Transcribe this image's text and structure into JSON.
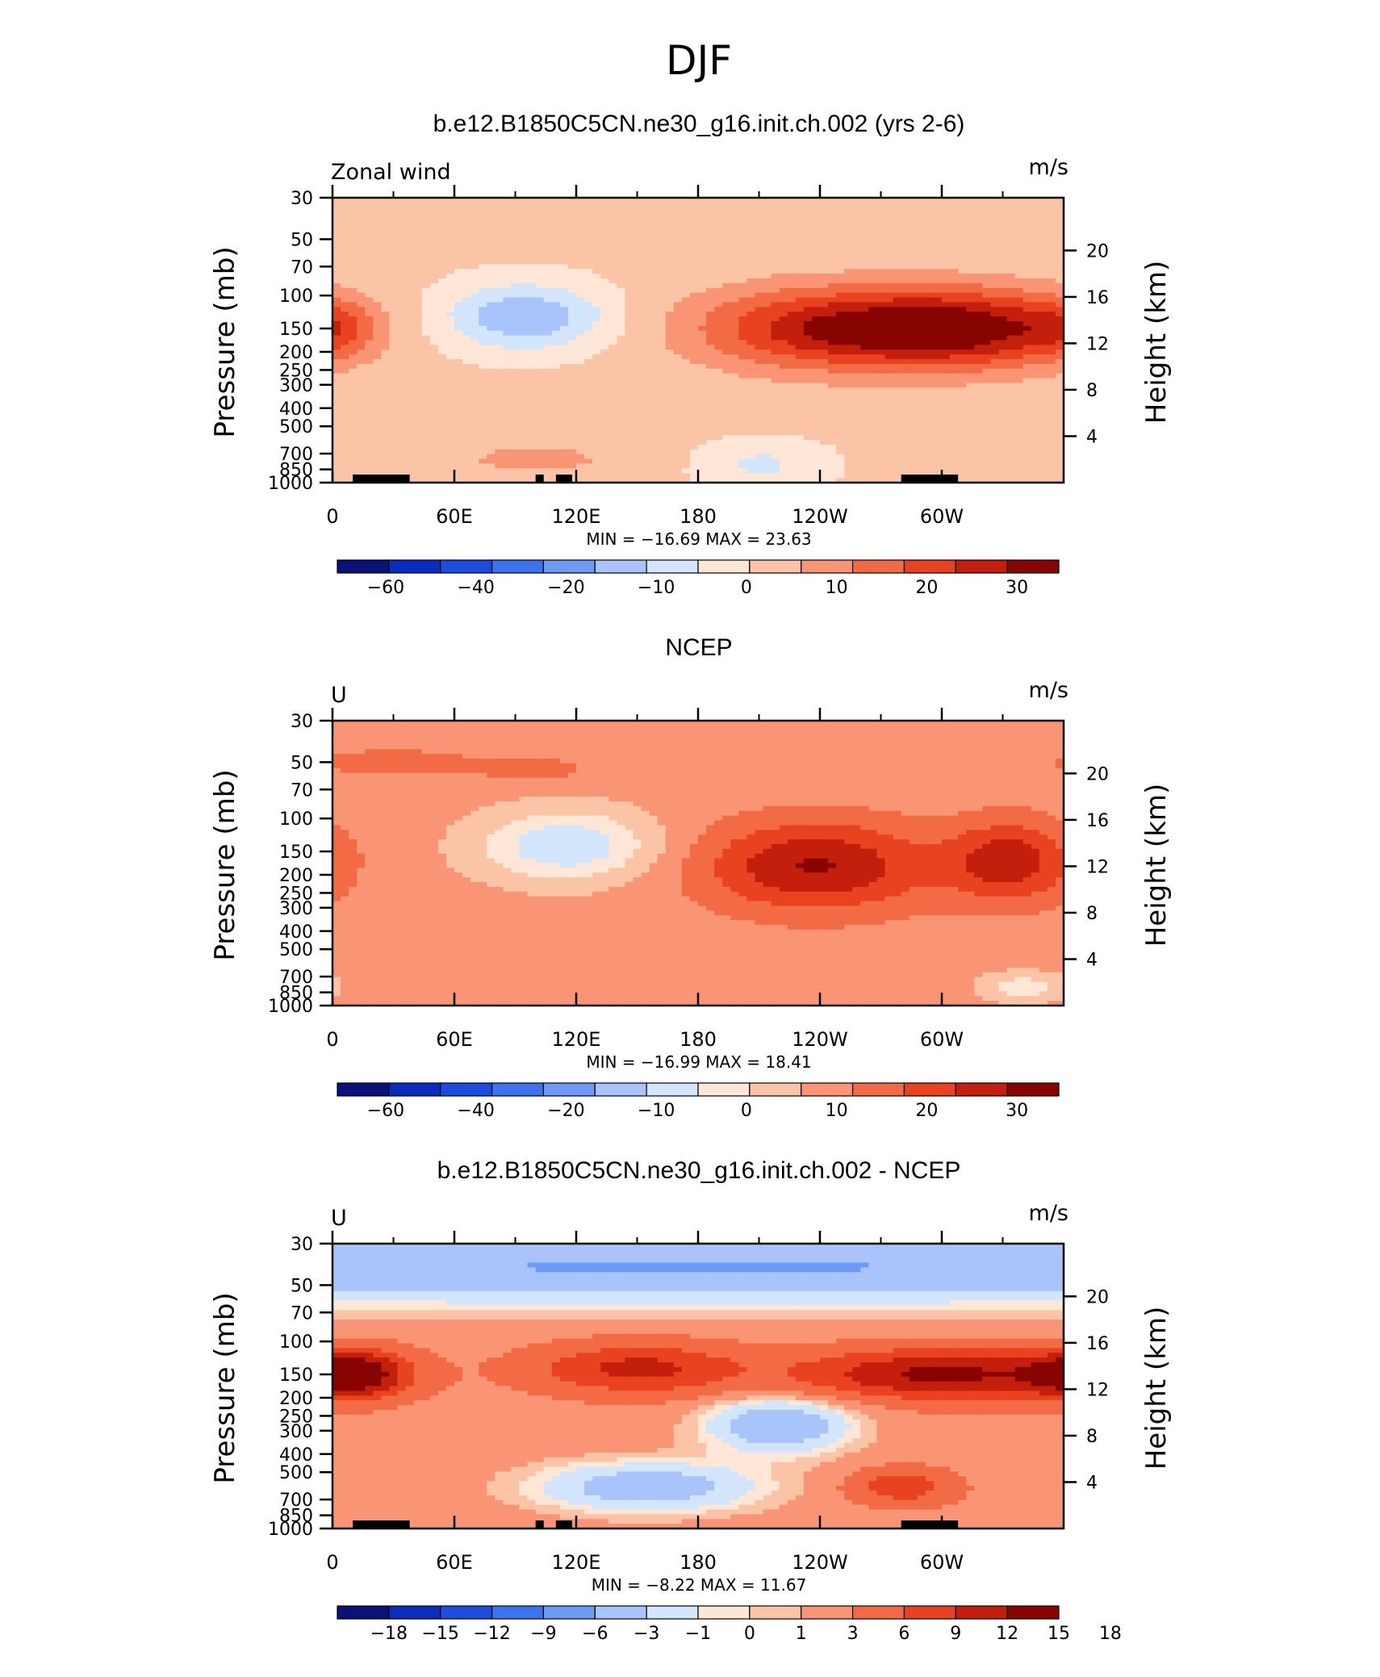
{
  "main_title": "DJF",
  "chart_data": [
    {
      "type": "heatmap",
      "title": "b.e12.B1850C5CN.ne30_g16.init.ch.002 (yrs 2-6)",
      "left_label": "Zonal wind",
      "units": "m/s",
      "ylabel": "Pressure (mb)",
      "ylabel_right": "Height (km)",
      "xticks": [
        "0",
        "60E",
        "120E",
        "180",
        "120W",
        "60W"
      ],
      "yticks": [
        "30",
        "50",
        "70",
        "100",
        "150",
        "200",
        "250",
        "300",
        "400",
        "500",
        "700",
        "850",
        "1000"
      ],
      "yticks_right": [
        "20",
        "16",
        "12",
        "8",
        "4"
      ],
      "stats": "MIN =  −16.69   MAX =   23.63",
      "colorbar_labels": [
        "−60",
        "−40",
        "−20",
        "−10",
        "0",
        "10",
        "20",
        "30"
      ],
      "colorbar_colors": [
        "#0a1178",
        "#0a2dbf",
        "#1a4de0",
        "#3c74ef",
        "#6c9af4",
        "#a9c4fb",
        "#d2e5fb",
        "#fee7d6",
        "#fcc4a6",
        "#f99474",
        "#f36b44",
        "#e84220",
        "#c41f0c",
        "#870400"
      ],
      "features": [
        {
          "lon": 248,
          "p": 150,
          "v": 23.6,
          "rx": 48,
          "ry": 3.6
        },
        {
          "lon": 318,
          "p": 150,
          "v": 21,
          "rx": 38,
          "ry": 3.4
        },
        {
          "lon": 95,
          "p": 130,
          "v": -16,
          "rx": 28,
          "ry": 2.8
        },
        {
          "lon": 0,
          "p": 150,
          "v": 8,
          "rx": 14,
          "ry": 2.5
        },
        {
          "lon": 100,
          "p": 750,
          "v": 5,
          "rx": 40,
          "ry": 2
        },
        {
          "lon": 210,
          "p": 800,
          "v": -7,
          "rx": 22,
          "ry": 2
        }
      ],
      "background": -4,
      "topography": [
        [
          10,
          30
        ],
        [
          28,
          38
        ],
        [
          100,
          104
        ],
        [
          110,
          118
        ],
        [
          280,
          308
        ]
      ]
    },
    {
      "type": "heatmap",
      "title": "NCEP",
      "left_label": "U",
      "units": "m/s",
      "ylabel": "Pressure (mb)",
      "ylabel_right": "Height (km)",
      "xticks": [
        "0",
        "60E",
        "120E",
        "180",
        "120W",
        "60W"
      ],
      "yticks": [
        "30",
        "50",
        "70",
        "100",
        "150",
        "200",
        "250",
        "300",
        "400",
        "500",
        "700",
        "850",
        "1000"
      ],
      "yticks_right": [
        "20",
        "16",
        "12",
        "8",
        "4"
      ],
      "stats": "MIN =  −16.99   MAX =   18.41",
      "colorbar_labels": [
        "−60",
        "−40",
        "−20",
        "−10",
        "0",
        "10",
        "20",
        "30"
      ],
      "colorbar_colors": [
        "#0a1178",
        "#0a2dbf",
        "#1a4de0",
        "#3c74ef",
        "#6c9af4",
        "#a9c4fb",
        "#d2e5fb",
        "#fee7d6",
        "#fcc4a6",
        "#f99474",
        "#f36b44",
        "#e84220",
        "#c41f0c",
        "#870400"
      ],
      "features": [
        {
          "lon": 238,
          "p": 180,
          "v": 18.4,
          "rx": 40,
          "ry": 4
        },
        {
          "lon": 334,
          "p": 170,
          "v": 16,
          "rx": 22,
          "ry": 3.6
        },
        {
          "lon": 115,
          "p": 140,
          "v": -17,
          "rx": 30,
          "ry": 3
        },
        {
          "lon": 30,
          "p": 50,
          "v": 6,
          "rx": 30,
          "ry": 1.2
        },
        {
          "lon": 100,
          "p": 55,
          "v": 5,
          "rx": 22,
          "ry": 1.2
        },
        {
          "lon": 340,
          "p": 800,
          "v": -10,
          "rx": 14,
          "ry": 1.3
        }
      ],
      "background": 2,
      "topography": []
    },
    {
      "type": "heatmap",
      "title": "b.e12.B1850C5CN.ne30_g16.init.ch.002 - NCEP",
      "left_label": "U",
      "units": "m/s",
      "ylabel": "Pressure (mb)",
      "ylabel_right": "Height (km)",
      "xticks": [
        "0",
        "60E",
        "120E",
        "180",
        "120W",
        "60W"
      ],
      "yticks": [
        "30",
        "50",
        "70",
        "100",
        "150",
        "200",
        "250",
        "300",
        "400",
        "500",
        "700",
        "850",
        "1000"
      ],
      "yticks_right": [
        "20",
        "16",
        "12",
        "8",
        "4"
      ],
      "stats": "MIN =   −8.22   MAX =   11.67",
      "colorbar_labels": [
        "−18",
        "−15",
        "−12",
        "−9",
        "−6",
        "−3",
        "−1",
        "0",
        "1",
        "3",
        "6",
        "9",
        "12",
        "15",
        "18"
      ],
      "colorbar_colors": [
        "#0a1178",
        "#0a2dbf",
        "#1a4de0",
        "#3c74ef",
        "#6c9af4",
        "#a9c4fb",
        "#d2e5fb",
        "#fee7d6",
        "#fcc4a6",
        "#f99474",
        "#f36b44",
        "#e84220",
        "#c41f0c",
        "#870400"
      ],
      "features": [
        {
          "lon": 180,
          "p": 40,
          "v": -8.2,
          "rx": 400,
          "ry": 3.2
        },
        {
          "lon": 10,
          "p": 150,
          "v": 11.6,
          "rx": 18,
          "ry": 2
        },
        {
          "lon": 300,
          "p": 150,
          "v": 11,
          "rx": 50,
          "ry": 2.2
        },
        {
          "lon": 150,
          "p": 140,
          "v": 8,
          "rx": 35,
          "ry": 2.2
        },
        {
          "lon": 220,
          "p": 280,
          "v": -8,
          "rx": 25,
          "ry": 2.4
        },
        {
          "lon": 155,
          "p": 600,
          "v": -7,
          "rx": 40,
          "ry": 2.2
        },
        {
          "lon": 280,
          "p": 600,
          "v": 6,
          "rx": 18,
          "ry": 1.6
        }
      ],
      "background": 2,
      "topography": [
        [
          10,
          30
        ],
        [
          28,
          38
        ],
        [
          100,
          104
        ],
        [
          110,
          118
        ],
        [
          280,
          308
        ]
      ]
    }
  ]
}
